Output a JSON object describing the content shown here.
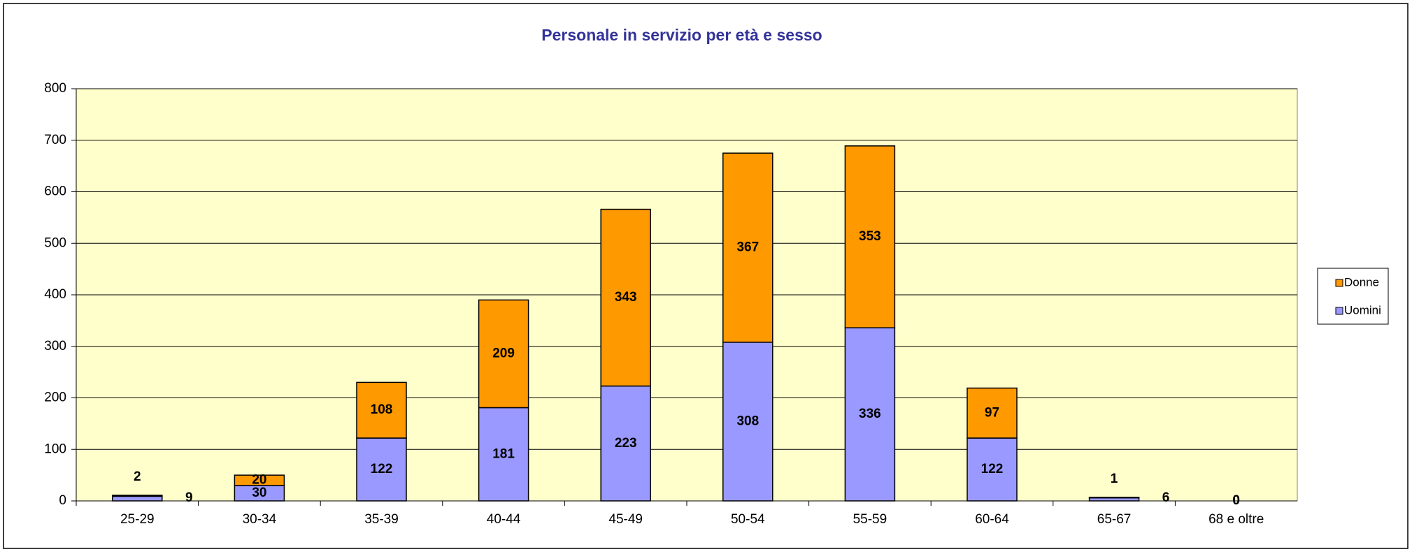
{
  "chart_data": {
    "type": "stacked_bar",
    "title": "Personale in servizio per età e sesso",
    "categories": [
      "25-29",
      "30-34",
      "35-39",
      "40-44",
      "45-49",
      "50-54",
      "55-59",
      "60-64",
      "65-67",
      "68 e oltre"
    ],
    "series": [
      {
        "name": "Uomini",
        "color": "#9999ff",
        "values": [
          9,
          30,
          122,
          181,
          223,
          308,
          336,
          122,
          6,
          0
        ]
      },
      {
        "name": "Donne",
        "color": "#ff9900",
        "values": [
          2,
          20,
          108,
          209,
          343,
          367,
          353,
          97,
          1,
          0
        ]
      }
    ],
    "ylim": [
      0,
      800
    ],
    "yticks": [
      0,
      100,
      200,
      300,
      400,
      500,
      600,
      700,
      800
    ],
    "grid": true,
    "legend": "right"
  }
}
